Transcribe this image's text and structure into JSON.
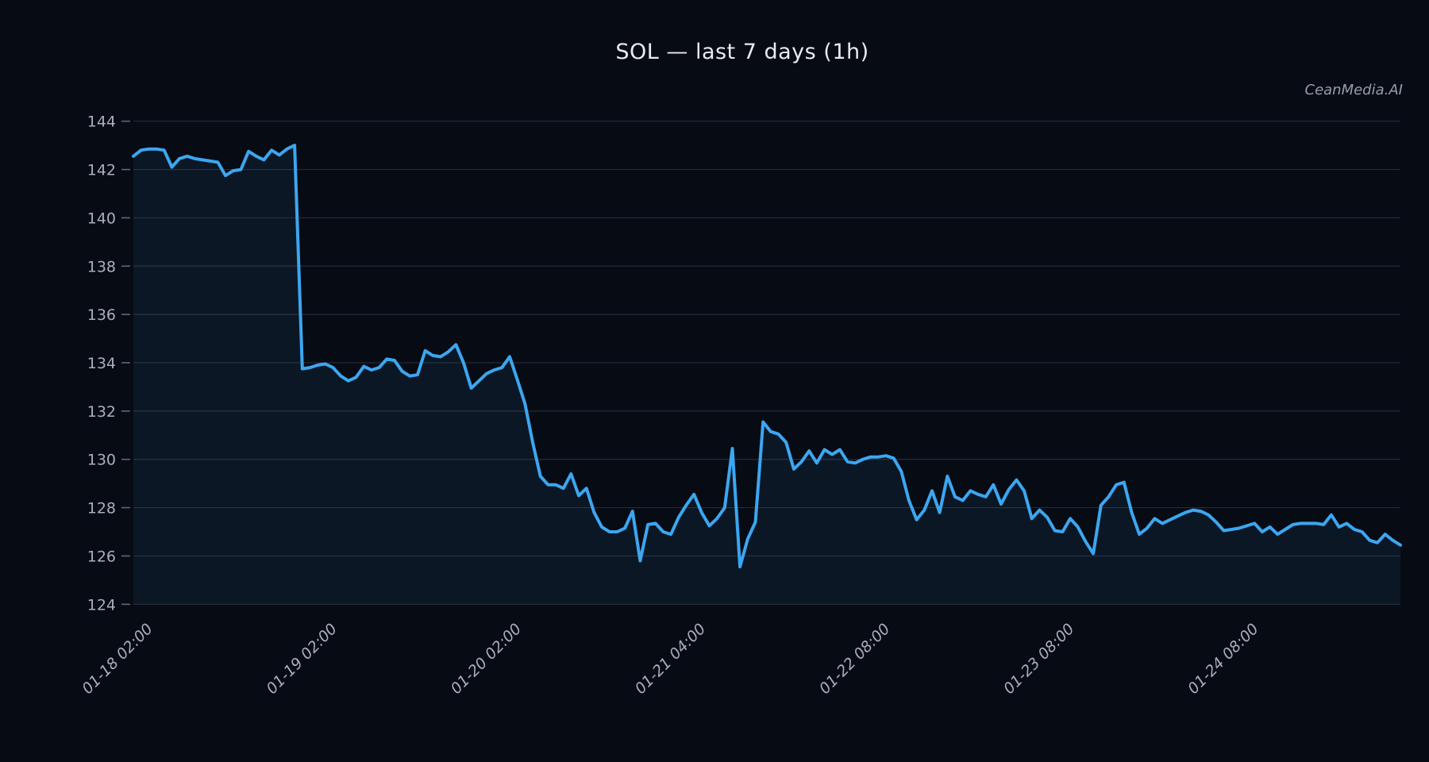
{
  "figure": {
    "title": "SOL — last 7 days (1h)",
    "watermark": "CeanMedia.AI"
  },
  "colors": {
    "background": "#070b14",
    "line": "#3ca6f0",
    "fill": "rgba(60,166,240,0.08)",
    "grid": "rgba(167,177,196,0.20)",
    "tick_mark": "rgba(170,178,195,0.55)",
    "tick_label": "#a9afbb",
    "title": "#e9eaee",
    "watermark": "#979da9"
  },
  "chart_data": {
    "type": "area",
    "title": "SOL — last 7 days (1h)",
    "symbol": "SOL",
    "interval": "1h",
    "ylim": [
      124,
      144
    ],
    "yticks": [
      124,
      126,
      128,
      130,
      132,
      134,
      136,
      138,
      140,
      142,
      144
    ],
    "x_tick_positions": [
      2,
      26,
      50,
      74,
      98,
      122,
      146
    ],
    "x_tick_labels": [
      "01-18 02:00",
      "01-19 02:00",
      "01-20 02:00",
      "01-21 04:00",
      "01-22 08:00",
      "01-23 08:00",
      "01-24 08:00"
    ],
    "grid": true,
    "legend": false,
    "values": [
      142.55,
      142.8,
      142.85,
      142.85,
      142.8,
      142.1,
      142.45,
      142.55,
      142.45,
      142.4,
      142.35,
      142.3,
      141.75,
      141.95,
      142.0,
      142.75,
      142.55,
      142.4,
      142.8,
      142.6,
      142.85,
      143.0,
      133.75,
      133.8,
      133.9,
      133.95,
      133.8,
      133.45,
      133.25,
      133.4,
      133.85,
      133.7,
      133.8,
      134.15,
      134.1,
      133.65,
      133.45,
      133.5,
      134.5,
      134.3,
      134.25,
      134.45,
      134.75,
      134.0,
      132.95,
      133.25,
      133.55,
      133.7,
      133.8,
      134.25,
      133.3,
      132.3,
      130.7,
      129.3,
      128.95,
      128.95,
      128.8,
      129.4,
      128.5,
      128.8,
      127.8,
      127.2,
      127.0,
      127.0,
      127.15,
      127.85,
      125.8,
      127.3,
      127.35,
      127.0,
      126.9,
      127.6,
      128.1,
      128.55,
      127.8,
      127.25,
      127.55,
      128.0,
      130.45,
      125.55,
      126.7,
      127.4,
      131.55,
      131.15,
      131.05,
      130.7,
      129.6,
      129.9,
      130.35,
      129.85,
      130.4,
      130.2,
      130.4,
      129.9,
      129.85,
      130.0,
      130.1,
      130.1,
      130.15,
      130.05,
      129.5,
      128.3,
      127.5,
      127.9,
      128.7,
      127.8,
      129.3,
      128.45,
      128.3,
      128.7,
      128.55,
      128.45,
      128.95,
      128.15,
      128.75,
      129.15,
      128.7,
      127.55,
      127.9,
      127.6,
      127.05,
      127.0,
      127.55,
      127.2,
      126.6,
      126.1,
      128.1,
      128.45,
      128.95,
      129.05,
      127.8,
      126.9,
      127.15,
      127.55,
      127.35,
      127.5,
      127.65,
      127.8,
      127.9,
      127.85,
      127.7,
      127.4,
      127.05,
      127.1,
      127.15,
      127.25,
      127.35,
      127.0,
      127.2,
      126.9,
      127.1,
      127.3,
      127.35,
      127.35,
      127.35,
      127.3,
      127.7,
      127.2,
      127.35,
      127.1,
      127.0,
      126.65,
      126.55,
      126.9,
      126.65,
      126.45
    ]
  }
}
